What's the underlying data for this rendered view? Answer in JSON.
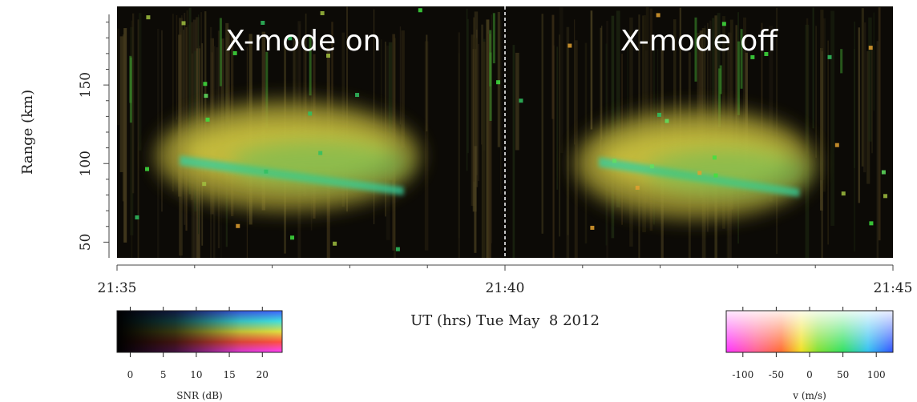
{
  "chart_data": {
    "type": "heatmap",
    "xlabel": "UT (hrs) Tue May  8 2012",
    "ylabel": "Range (km)",
    "x_ticks": [
      "21:35",
      "21:40",
      "21:45"
    ],
    "x_range_minutes": [
      35,
      45
    ],
    "y_ticks": [
      50,
      100,
      150
    ],
    "ylim": [
      40,
      200
    ],
    "marker_line": "21:40",
    "annotations": [
      {
        "text": "X-mode on",
        "x_minute": 37.4,
        "y": 178
      },
      {
        "text": "X-mode off",
        "x_minute": 42.5,
        "y": 178
      }
    ],
    "echo_regions": [
      {
        "name": "X-mode on",
        "t_start": 35.5,
        "t_end": 38.9,
        "r_min": 70,
        "r_max": 140,
        "center": 103
      },
      {
        "name": "X-mode off",
        "t_start": 40.9,
        "t_end": 44.0,
        "r_min": 65,
        "r_max": 135,
        "center": 102
      }
    ],
    "colorbars": [
      {
        "label": "SNR (dB)",
        "ticks": [
          0,
          5,
          10,
          15,
          20
        ],
        "range": [
          -2,
          23
        ]
      },
      {
        "label": "v (m/s)",
        "ticks": [
          -100,
          -50,
          0,
          50,
          100
        ],
        "range": [
          -125,
          125
        ]
      }
    ]
  }
}
